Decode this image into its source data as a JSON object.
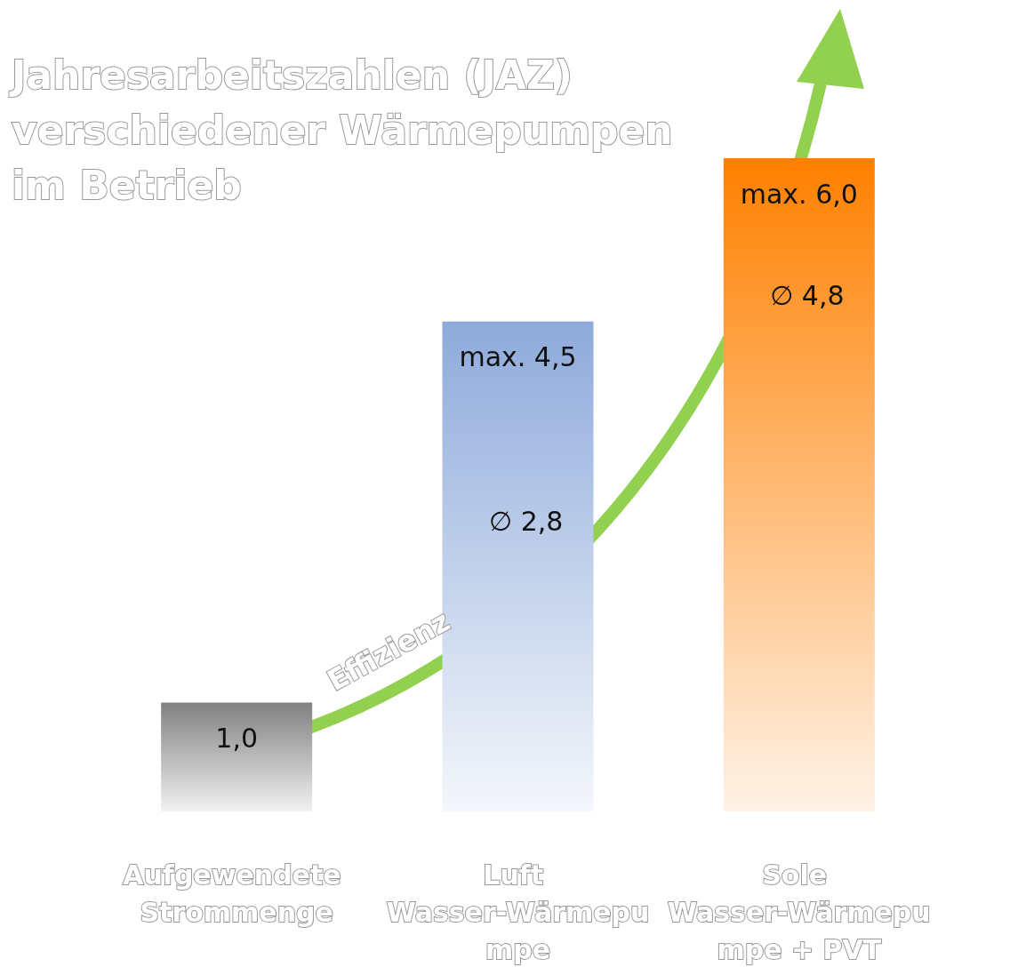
{
  "chart_data": {
    "type": "bar",
    "title": "Jahresarbeitszahlen (JAZ) verschiedener Wärmepumpen im Betrieb",
    "categories": [
      "Aufgewendete Strommenge",
      "Luft Wasser-Wärmepumpe",
      "Sole Wasser-Wärmepumpe + PVT"
    ],
    "values": [
      1.0,
      4.5,
      6.0
    ],
    "value_labels": [
      "1,0",
      "max. 4,5",
      "max. 6,0"
    ],
    "colors": [
      "#808080",
      "#8eaadb",
      "#ff8000"
    ],
    "annotations": [
      "∅ 2,8",
      "∅ 4,8",
      "Effizienz"
    ],
    "grid": false
  }
}
